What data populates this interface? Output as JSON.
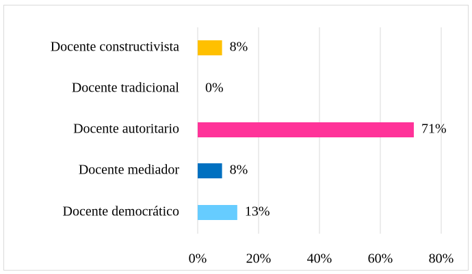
{
  "chart_data": {
    "type": "barh",
    "categories": [
      "Docente constructivista",
      "Docente tradicional",
      "Docente autoritario",
      "Docente mediador",
      "Docente democrático"
    ],
    "values": [
      8,
      0,
      71,
      8,
      13
    ],
    "value_labels": [
      "8%",
      "0%",
      "71%",
      "8%",
      "13%"
    ],
    "colors": [
      "#FFC000",
      "#A5A5A5",
      "#FF3399",
      "#0070C0",
      "#66CCFF"
    ],
    "xlim": [
      0,
      80
    ],
    "xticks": [
      {
        "value": 0,
        "label": "0%"
      },
      {
        "value": 20,
        "label": "20%"
      },
      {
        "value": 40,
        "label": "40%"
      },
      {
        "value": 60,
        "label": "60%"
      },
      {
        "value": 80,
        "label": "80%"
      }
    ],
    "grid": true
  }
}
